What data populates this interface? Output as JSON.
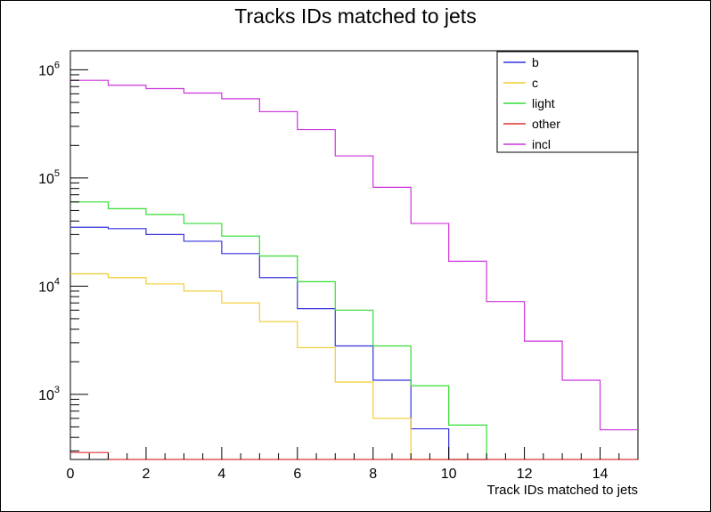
{
  "chart_data": {
    "type": "line",
    "title": "Tracks IDs matched to jets",
    "xlabel": "Track IDs matched to jets",
    "ylabel": "",
    "xlim": [
      0,
      15
    ],
    "ylim": [
      250,
      1500000
    ],
    "yscale": "log",
    "grid": false,
    "legend_position": "top-right",
    "x_ticks": [
      0,
      2,
      4,
      6,
      8,
      10,
      12,
      14
    ],
    "y_ticks": [
      {
        "base": "10",
        "exp": "3",
        "value": 1000
      },
      {
        "base": "10",
        "exp": "4",
        "value": 10000
      },
      {
        "base": "10",
        "exp": "5",
        "value": 100000
      },
      {
        "base": "10",
        "exp": "6",
        "value": 1000000
      }
    ],
    "bin_edges": [
      0,
      1,
      2,
      3,
      4,
      5,
      6,
      7,
      8,
      9,
      10,
      11,
      12,
      13,
      14,
      15
    ],
    "series": [
      {
        "name": "b",
        "color": "#3333dd",
        "values": [
          35000,
          34000,
          30000,
          26000,
          20000,
          12000,
          6200,
          2800,
          1350,
          480,
          250,
          null,
          null,
          null,
          null
        ]
      },
      {
        "name": "c",
        "color": "#f2cc2e",
        "values": [
          13000,
          12000,
          10500,
          9000,
          7000,
          4700,
          2700,
          1300,
          600,
          250,
          250,
          null,
          null,
          null,
          null
        ]
      },
      {
        "name": "light",
        "color": "#33dd33",
        "values": [
          60000,
          52000,
          46000,
          38000,
          29000,
          19000,
          11000,
          6000,
          2800,
          1200,
          520,
          null,
          null,
          null,
          null
        ]
      },
      {
        "name": "other",
        "color": "#dd3333",
        "values": [
          290,
          250,
          250,
          250,
          250,
          250,
          250,
          250,
          250,
          250,
          250,
          250,
          250,
          250,
          250
        ]
      },
      {
        "name": "incl",
        "color": "#cc33dd",
        "values": [
          800000,
          720000,
          670000,
          610000,
          540000,
          410000,
          280000,
          160000,
          82000,
          38000,
          17000,
          7200,
          3100,
          1350,
          470
        ]
      }
    ]
  }
}
